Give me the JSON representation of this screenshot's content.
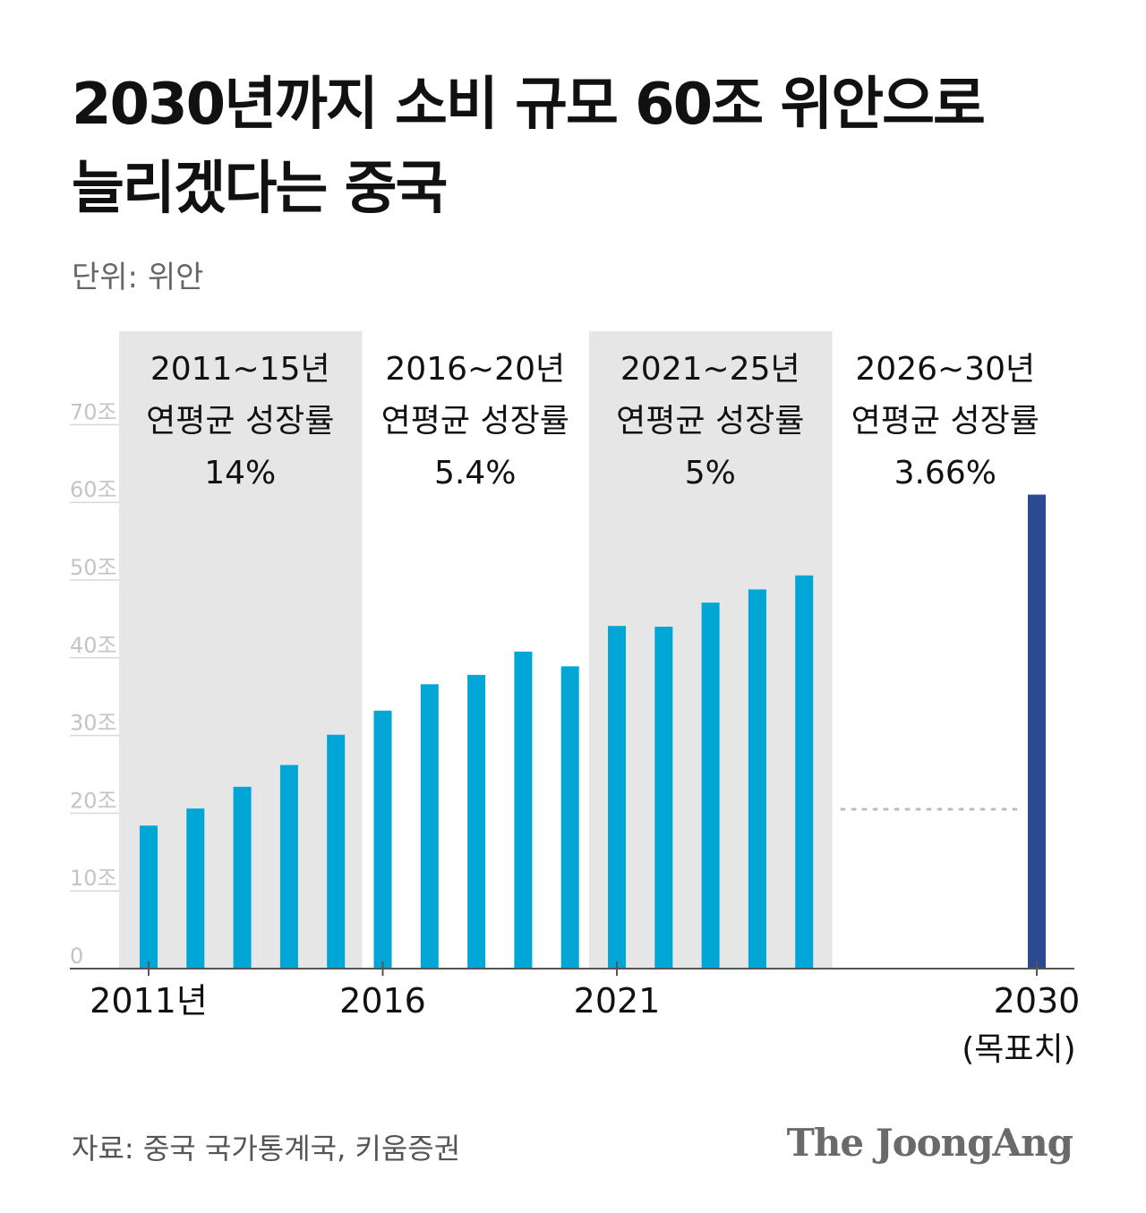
{
  "header": {
    "title_line1": "2030년까지 소비 규모 60조 위안으로",
    "title_line2": "늘리겠다는 중국",
    "unit": "단위: 위안"
  },
  "footer": {
    "source": "자료: 중국 국가통계국, 키움증권",
    "brand": "The JoongAng"
  },
  "colors": {
    "bar": "#00a6d6",
    "target_bar": "#2b4a8f",
    "band": "#e6e6e6",
    "grid": "#d9d9d9",
    "tick_label": "#c4c4c4"
  },
  "chart_data": {
    "type": "bar",
    "xlabel": "",
    "ylabel": "",
    "ylim": [
      0,
      70
    ],
    "y_ticks": [
      {
        "value": 0,
        "label": "0"
      },
      {
        "value": 10,
        "label": "10조"
      },
      {
        "value": 20,
        "label": "20조"
      },
      {
        "value": 30,
        "label": "30조"
      },
      {
        "value": 40,
        "label": "40조"
      },
      {
        "value": 50,
        "label": "50조"
      },
      {
        "value": 60,
        "label": "60조"
      },
      {
        "value": 70,
        "label": "70조"
      }
    ],
    "categories": [
      "2011",
      "2012",
      "2013",
      "2014",
      "2015",
      "2016",
      "2017",
      "2018",
      "2019",
      "2020",
      "2021",
      "2022",
      "2023",
      "2024",
      "2025",
      "2026",
      "2027",
      "2028",
      "2029",
      "2030"
    ],
    "values": [
      18.4,
      20.6,
      23.4,
      26.2,
      30.1,
      33.2,
      36.6,
      37.8,
      40.8,
      38.9,
      44.1,
      44.0,
      47.1,
      48.8,
      50.6,
      null,
      null,
      null,
      null,
      61.0
    ],
    "target_category": "2030",
    "x_tick_labels": [
      {
        "category": "2011",
        "label": "2011년"
      },
      {
        "category": "2016",
        "label": "2016"
      },
      {
        "category": "2021",
        "label": "2021"
      },
      {
        "category": "2030",
        "label": "2030",
        "sublabel": "(목표치)"
      }
    ],
    "periods": [
      {
        "from": "2011",
        "to": "2015",
        "range": "2011~15년",
        "desc": "연평균 성장률",
        "rate": "14%",
        "shaded": true
      },
      {
        "from": "2016",
        "to": "2020",
        "range": "2016~20년",
        "desc": "연평균 성장률",
        "rate": "5.4%",
        "shaded": false
      },
      {
        "from": "2021",
        "to": "2025",
        "range": "2021~25년",
        "desc": "연평균 성장률",
        "rate": "5%",
        "shaded": true
      },
      {
        "from": "2026",
        "to": "2030",
        "range": "2026~30년",
        "desc": "연평균 성장률",
        "rate": "3.66%",
        "shaded": false
      }
    ],
    "dotted_reference": {
      "from": "2026",
      "to": "2029",
      "value": 20.5
    }
  }
}
